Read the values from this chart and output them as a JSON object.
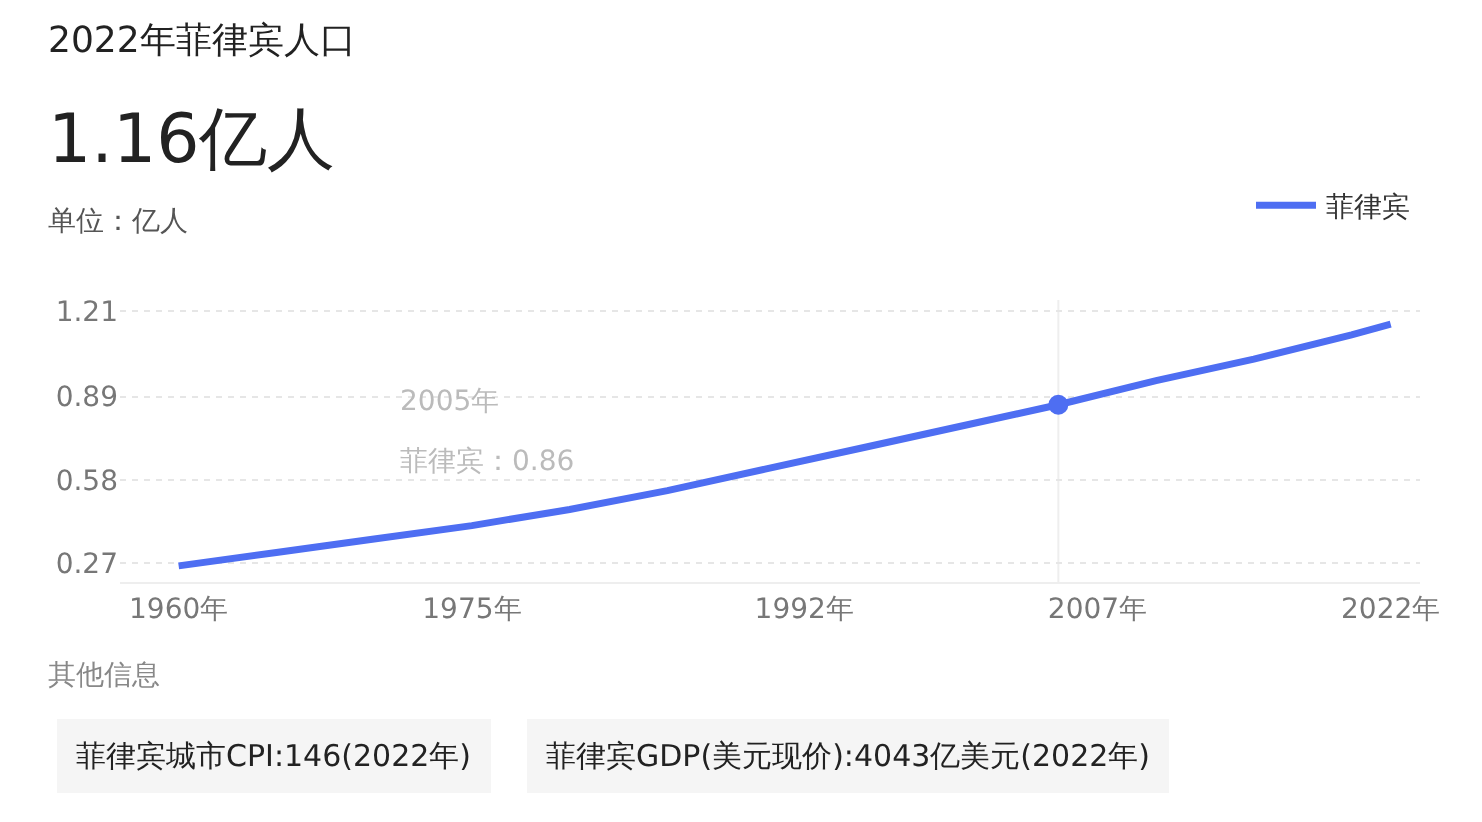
{
  "chart_data": {
    "type": "line",
    "title": "2022年菲律宾人口",
    "subtitle": "1.16亿人",
    "ylabel": "单位：亿人",
    "x": [
      1960,
      1965,
      1970,
      1975,
      1980,
      1985,
      1990,
      1995,
      2000,
      2005,
      2010,
      2015,
      2020,
      2022
    ],
    "series": [
      {
        "name": "菲律宾",
        "color": "#4e6ef2",
        "values": [
          0.26,
          0.31,
          0.36,
          0.41,
          0.47,
          0.54,
          0.62,
          0.7,
          0.78,
          0.86,
          0.95,
          1.03,
          1.12,
          1.16
        ]
      },
      {
        "type": "scatter",
        "color": "#4e6ef2",
        "x": [
          2005
        ],
        "values": [
          0.86
        ],
        "marker": "circle"
      }
    ],
    "xlim": [
      1957,
      2023.5
    ],
    "xticks": [
      {
        "value": 1960,
        "label": "1960年"
      },
      {
        "value": 1975,
        "label": "1975年"
      },
      {
        "value": 1992,
        "label": "1992年"
      },
      {
        "value": 2007,
        "label": "2007年"
      },
      {
        "value": 2022,
        "label": "2022年"
      }
    ],
    "ylim": [
      0.2,
      1.25
    ],
    "yticks": [
      0.27,
      0.58,
      0.89,
      1.21
    ],
    "grid": "y",
    "legend": "top right",
    "marker": "none",
    "line_style": "solid",
    "ref_lines": [
      {
        "axis": "x",
        "value": 2005,
        "color": "#eeeeee"
      }
    ],
    "annotations": [
      "2005年",
      "菲律宾：0.86",
      "其他信息",
      "菲律宾城市CPI:146(2022年)",
      "菲律宾GDP(美元现价):4043亿美元(2022年)"
    ]
  }
}
